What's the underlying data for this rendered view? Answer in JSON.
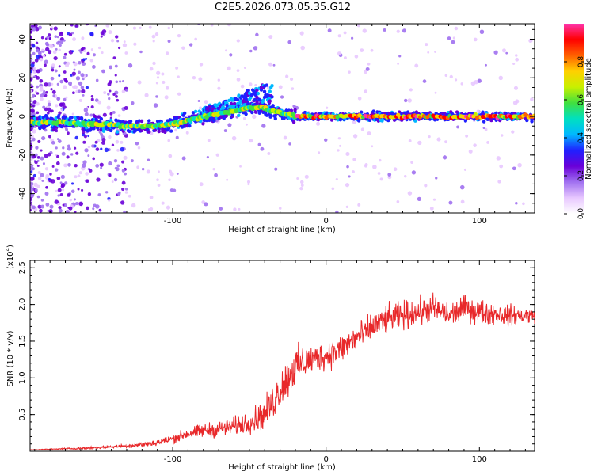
{
  "title": "C2E5.2026.073.05.35.G12",
  "colors": {
    "snr_line": "#e8282a",
    "frame": "#000000",
    "colormap": [
      "#ffffff",
      "#e8c8ff",
      "#a070f0",
      "#6a00d8",
      "#2020ff",
      "#00b8ff",
      "#00e0c0",
      "#40e040",
      "#c8f000",
      "#ffd000",
      "#ff6000",
      "#ff0000",
      "#ff33aa"
    ]
  },
  "chart_data": [
    {
      "type": "heatmap",
      "name": "spectrogram",
      "title": "C2E5.2026.073.05.35.G12",
      "xlabel": "Height of straight line (km)",
      "ylabel": "Frequency (Hz)",
      "xlim": [
        -193,
        136
      ],
      "ylim": [
        -50,
        48
      ],
      "xticks": [
        -100,
        0,
        100
      ],
      "xtick_labels": [
        "-100",
        "0",
        "100"
      ],
      "yticks": [
        -40,
        -20,
        0,
        20,
        40
      ],
      "ytick_labels": [
        "-40",
        "-20",
        "0",
        "20",
        "40"
      ],
      "ridge": {
        "x": [
          -193,
          -170,
          -150,
          -130,
          -110,
          -95,
          -80,
          -65,
          -55,
          -45,
          -35,
          -25,
          -20,
          0,
          20,
          40,
          60,
          80,
          100,
          120,
          136
        ],
        "y": [
          -3,
          -3,
          -4,
          -5,
          -5,
          -3,
          0,
          2,
          4,
          5,
          3,
          1,
          0,
          0,
          0,
          0,
          0,
          0,
          0,
          0,
          0
        ]
      },
      "upper_wing": {
        "x": [
          -80,
          -65,
          -55,
          -45,
          -35
        ],
        "y": [
          5,
          8,
          12,
          16,
          19
        ]
      },
      "colorbar": {
        "label": "Normalized spectral amplitude",
        "range": [
          0.0,
          1.0
        ],
        "ticks": [
          0.0,
          0.2,
          0.4,
          0.6,
          0.8
        ],
        "tick_labels": [
          "0.0",
          "0.2",
          "0.4",
          "0.6",
          "0.8"
        ]
      }
    },
    {
      "type": "line",
      "name": "snr",
      "xlabel": "Height of straight line (km)",
      "ylabel": "SNR (10 * v/v)",
      "y_scale_label": "(x10",
      "y_scale_exp": "4",
      "y_scale_close": ")",
      "xlim": [
        -193,
        136
      ],
      "ylim": [
        0,
        2.6
      ],
      "xticks": [
        -100,
        0,
        100
      ],
      "xtick_labels": [
        "-100",
        "0",
        "100"
      ],
      "yticks": [
        0.5,
        1.0,
        1.5,
        2.0,
        2.5
      ],
      "ytick_labels": [
        "0.5",
        "1.0",
        "1.5",
        "2.0",
        "2.5"
      ],
      "series": [
        {
          "name": "SNR",
          "x": [
            -193,
            -160,
            -140,
            -120,
            -110,
            -100,
            -90,
            -80,
            -70,
            -60,
            -50,
            -40,
            -35,
            -30,
            -25,
            -20,
            -15,
            -10,
            -5,
            0,
            10,
            20,
            25,
            30,
            40,
            50,
            60,
            70,
            80,
            90,
            100,
            110,
            120,
            130,
            136
          ],
          "y": [
            0.02,
            0.04,
            0.06,
            0.09,
            0.12,
            0.17,
            0.24,
            0.28,
            0.3,
            0.34,
            0.4,
            0.5,
            0.65,
            0.85,
            1.0,
            1.15,
            1.2,
            1.25,
            1.28,
            1.3,
            1.4,
            1.55,
            1.6,
            1.7,
            1.8,
            1.85,
            1.9,
            1.95,
            1.85,
            1.95,
            1.9,
            1.88,
            1.85,
            1.85,
            1.85
          ],
          "noise": [
            0.005,
            0.02,
            0.03,
            0.05,
            0.07,
            0.09,
            0.12,
            0.14,
            0.16,
            0.18,
            0.22,
            0.3,
            0.35,
            0.4,
            0.4,
            0.4,
            0.35,
            0.3,
            0.28,
            0.28,
            0.3,
            0.3,
            0.28,
            0.28,
            0.28,
            0.28,
            0.28,
            0.28,
            0.25,
            0.25,
            0.25,
            0.22,
            0.2,
            0.18,
            0.15
          ]
        }
      ]
    }
  ]
}
